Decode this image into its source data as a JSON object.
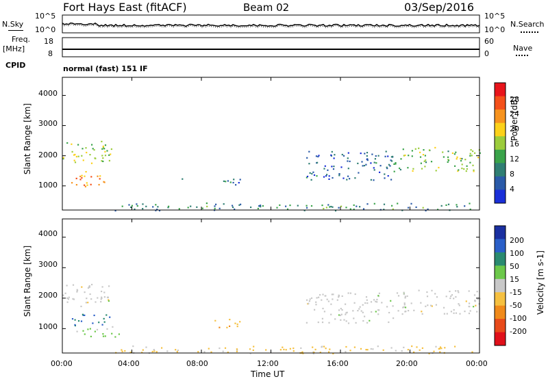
{
  "header": {
    "station": "Fort Hays East (fitACF)",
    "beam": "Beam 02",
    "date": "03/Sep/2016"
  },
  "summary_panels": {
    "nsky_label": "N.Sky",
    "nsearch_label": "N.Search",
    "freq_label_top": "Freq.",
    "freq_label_bottom": "[MHz]",
    "nave_label": "Nave",
    "cpid_label": "CPID",
    "noise_ticks_left": [
      "10^5",
      "10^0"
    ],
    "noise_ticks_right": [
      "10^5",
      "10^0"
    ],
    "freq_ticks": [
      "18",
      "8"
    ],
    "nave_ticks": [
      "60",
      "0"
    ],
    "cpid_text": "normal (fast) 151 IF"
  },
  "axes": {
    "ylabel": "Slant Range [km]",
    "xlabel": "Time UT",
    "y_ticks": [
      "4000",
      "3000",
      "2000",
      "1000"
    ],
    "x_ticks": [
      "00:00",
      "04:00",
      "08:00",
      "12:00",
      "16:00",
      "20:00",
      "00:00"
    ]
  },
  "colorbars": {
    "power": {
      "label": "Power [dB]",
      "ticks": [
        "28",
        "24",
        "20",
        "16",
        "12",
        "8",
        "4"
      ],
      "colors": [
        "#e8141b",
        "#f4501a",
        "#f7931e",
        "#fcd11a",
        "#9ccc3c",
        "#3aa34a",
        "#2f7e73",
        "#2a5aa8",
        "#1a2fd8"
      ]
    },
    "velocity": {
      "label": "Velocity [m s-1]",
      "ticks": [
        "200",
        "100",
        "50",
        "15",
        "-15",
        "-50",
        "-100",
        "-200"
      ],
      "colors": [
        "#1a2fa0",
        "#2a5fc8",
        "#2a8a70",
        "#6cc84a",
        "#c8c8c8",
        "#f5c040",
        "#f08a1a",
        "#e84a1a",
        "#e0101a"
      ]
    }
  },
  "chart_data": [
    {
      "type": "heatmap",
      "title": "",
      "xlabel": "Time UT",
      "ylabel": "Slant Range [km]",
      "xlim": [
        0,
        24
      ],
      "ylim": [
        200,
        4600
      ],
      "value_label": "Power [dB]",
      "regions": [
        {
          "x": [
            0.0,
            2.8
          ],
          "y": [
            1700,
            2500
          ],
          "value": 16
        },
        {
          "x": [
            0.5,
            2.8
          ],
          "y": [
            1000,
            1500
          ],
          "value": 22
        },
        {
          "x": [
            6.5,
            7.0
          ],
          "y": [
            1200,
            1300
          ],
          "value": 8
        },
        {
          "x": [
            8.7,
            10.3
          ],
          "y": [
            1050,
            1350
          ],
          "value": 8
        },
        {
          "x": [
            14.0,
            19.0
          ],
          "y": [
            1200,
            2200
          ],
          "value": 6
        },
        {
          "x": [
            19.0,
            24.0
          ],
          "y": [
            1500,
            2300
          ],
          "value": 14
        },
        {
          "x": [
            3.0,
            24.0
          ],
          "y": [
            200,
            450
          ],
          "value": 10
        }
      ]
    },
    {
      "type": "heatmap",
      "title": "",
      "xlabel": "Time UT",
      "ylabel": "Slant Range [km]",
      "xlim": [
        0,
        24
      ],
      "ylim": [
        200,
        4600
      ],
      "value_label": "Velocity [m s-1]",
      "regions": [
        {
          "x": [
            0.0,
            2.8
          ],
          "y": [
            1700,
            2500
          ],
          "value": 0
        },
        {
          "x": [
            0.5,
            2.8
          ],
          "y": [
            1100,
            1500
          ],
          "value": 150
        },
        {
          "x": [
            0.8,
            3.3
          ],
          "y": [
            750,
            1100
          ],
          "value": 40
        },
        {
          "x": [
            8.7,
            10.3
          ],
          "y": [
            1050,
            1350
          ],
          "value": -60
        },
        {
          "x": [
            14.0,
            19.0
          ],
          "y": [
            1200,
            2200
          ],
          "value": 0
        },
        {
          "x": [
            19.0,
            24.0
          ],
          "y": [
            1500,
            2300
          ],
          "value": 0
        },
        {
          "x": [
            3.0,
            24.0
          ],
          "y": [
            200,
            450
          ],
          "value": -40
        }
      ]
    }
  ]
}
